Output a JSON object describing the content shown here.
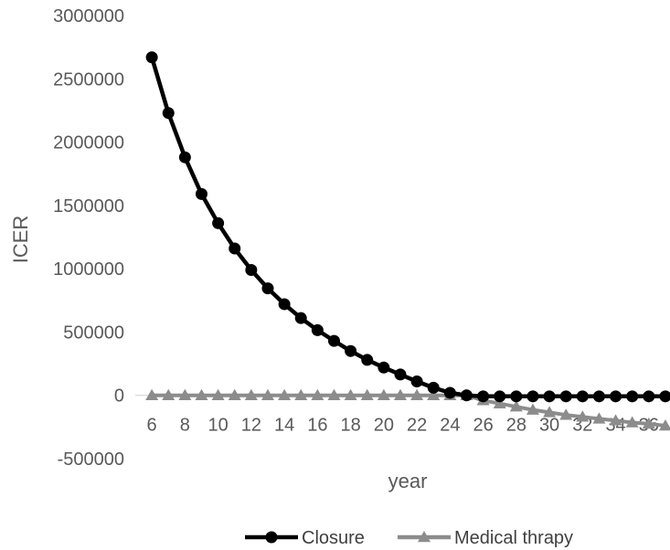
{
  "chart_data": {
    "type": "line",
    "xlabel": "year",
    "ylabel": "ICER",
    "ylim": [
      -500000,
      3000000
    ],
    "y_ticks": [
      -500000,
      0,
      500000,
      1000000,
      1500000,
      2000000,
      2500000,
      3000000
    ],
    "x_ticks": [
      6,
      8,
      10,
      12,
      14,
      16,
      18,
      20,
      22,
      24,
      26,
      28,
      30,
      32,
      34,
      36
    ],
    "x": [
      6,
      7,
      8,
      9,
      10,
      11,
      12,
      13,
      14,
      15,
      16,
      17,
      18,
      19,
      20,
      21,
      22,
      23,
      24,
      25,
      26,
      27,
      28,
      29,
      30,
      31,
      32,
      33,
      34,
      35,
      36,
      37
    ],
    "series": [
      {
        "name": "Closure",
        "color": "#000000",
        "marker": "circle",
        "values": [
          2670000,
          2230000,
          1880000,
          1590000,
          1360000,
          1160000,
          990000,
          845000,
          720000,
          610000,
          515000,
          430000,
          350000,
          280000,
          220000,
          165000,
          110000,
          60000,
          20000,
          0,
          -8000,
          -8000,
          -8000,
          -8000,
          -8000,
          -8000,
          -8000,
          -8000,
          -8000,
          -8000,
          -8000,
          -8000
        ]
      },
      {
        "name": "Medical thrapy",
        "color": "#8c8c8c",
        "marker": "triangle",
        "values": [
          0,
          0,
          0,
          0,
          0,
          0,
          0,
          0,
          0,
          0,
          0,
          0,
          0,
          0,
          0,
          0,
          0,
          0,
          0,
          0,
          -40000,
          -65000,
          -90000,
          -115000,
          -135000,
          -155000,
          -170000,
          -185000,
          -200000,
          -215000,
          -225000,
          -240000
        ]
      }
    ],
    "legend": "bottom-center",
    "grid": false
  }
}
